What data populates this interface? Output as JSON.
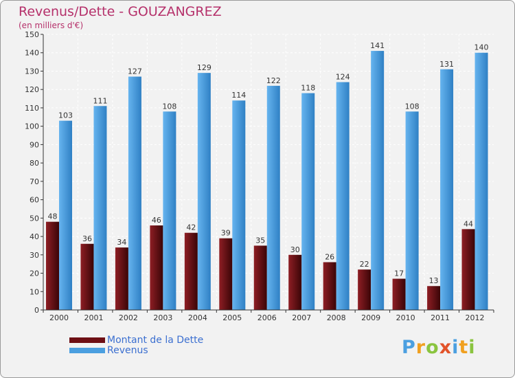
{
  "chart_data": {
    "type": "bar",
    "title": "Revenus/Dette - GOUZANGREZ",
    "subtitle": "(en milliers d'€)",
    "xlabel": "",
    "ylabel": "",
    "ylim": [
      0,
      150
    ],
    "yticks": [
      "0",
      "10",
      "20",
      "30",
      "40",
      "50",
      "60",
      "70",
      "80",
      "90",
      "100",
      "110",
      "120",
      "130",
      "140",
      "150"
    ],
    "grid": true,
    "legend_position": "bottom-left",
    "categories": [
      "2000",
      "2001",
      "2002",
      "2003",
      "2004",
      "2005",
      "2006",
      "2007",
      "2008",
      "2009",
      "2010",
      "2011",
      "2012"
    ],
    "series": [
      {
        "name": "Montant de la Dette",
        "color": "#6e0f14",
        "values": [
          48,
          36,
          34,
          46,
          42,
          39,
          35,
          30,
          26,
          22,
          17,
          13,
          44
        ]
      },
      {
        "name": "Revenus",
        "color": "#4b9fe0",
        "values": [
          103,
          111,
          127,
          108,
          129,
          114,
          122,
          118,
          124,
          141,
          108,
          131,
          140
        ]
      }
    ]
  },
  "logo": {
    "text": "Proxiti"
  }
}
